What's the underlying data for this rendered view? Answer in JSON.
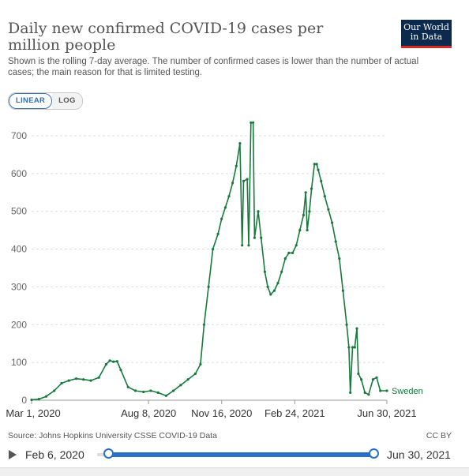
{
  "header": {
    "title": "Daily new confirmed COVID-19 cases per million people",
    "subtitle": "Shown is the rolling 7-day average. The number of confirmed cases is lower than the number of actual cases; the main reason for that is limited testing.",
    "logo_line1": "Our World",
    "logo_line2": "in Data"
  },
  "scale_toggle": {
    "linear_label": "LINEAR",
    "log_label": "LOG",
    "selected": "LINEAR"
  },
  "footer": {
    "source": "Source: Johns Hopkins University CSSE COVID-19 Data",
    "license": "CC BY"
  },
  "timeline": {
    "start_label": "Feb 6, 2020",
    "end_label": "Jun 30, 2021"
  },
  "colors": {
    "series": "#18793d",
    "grid": "#dddddd",
    "accent": "#2a70c9"
  },
  "chart_data": {
    "type": "line",
    "title": "Daily new confirmed COVID-19 cases per million people",
    "ylim": [
      0,
      700
    ],
    "yticks": [
      0,
      100,
      200,
      300,
      400,
      500,
      600,
      700
    ],
    "xlim": [
      "2020-03-01",
      "2021-06-30"
    ],
    "xticks": [
      {
        "date": "2020-03-01",
        "label": "Mar 1, 2020"
      },
      {
        "date": "2020-08-08",
        "label": "Aug 8, 2020"
      },
      {
        "date": "2020-11-16",
        "label": "Nov 16, 2020"
      },
      {
        "date": "2021-02-24",
        "label": "Feb 24, 2021"
      },
      {
        "date": "2021-06-30",
        "label": "Jun 30, 2021"
      }
    ],
    "grid": "horizontal dashed",
    "series": [
      {
        "name": "Sweden",
        "points": [
          [
            "2020-03-01",
            1
          ],
          [
            "2020-03-11",
            3
          ],
          [
            "2020-03-21",
            10
          ],
          [
            "2020-04-01",
            25
          ],
          [
            "2020-04-11",
            45
          ],
          [
            "2020-04-21",
            52
          ],
          [
            "2020-05-01",
            57
          ],
          [
            "2020-05-11",
            55
          ],
          [
            "2020-05-21",
            52
          ],
          [
            "2020-06-01",
            60
          ],
          [
            "2020-06-11",
            95
          ],
          [
            "2020-06-16",
            105
          ],
          [
            "2020-06-21",
            102
          ],
          [
            "2020-06-26",
            103
          ],
          [
            "2020-07-01",
            80
          ],
          [
            "2020-07-11",
            35
          ],
          [
            "2020-07-21",
            25
          ],
          [
            "2020-08-01",
            22
          ],
          [
            "2020-08-11",
            25
          ],
          [
            "2020-08-21",
            20
          ],
          [
            "2020-09-01",
            12
          ],
          [
            "2020-09-11",
            25
          ],
          [
            "2020-09-21",
            40
          ],
          [
            "2020-10-01",
            55
          ],
          [
            "2020-10-11",
            70
          ],
          [
            "2020-10-18",
            95
          ],
          [
            "2020-10-23",
            200
          ],
          [
            "2020-10-29",
            300
          ],
          [
            "2020-11-04",
            400
          ],
          [
            "2020-11-11",
            440
          ],
          [
            "2020-11-16",
            480
          ],
          [
            "2020-11-21",
            510
          ],
          [
            "2020-11-26",
            540
          ],
          [
            "2020-12-01",
            575
          ],
          [
            "2020-12-06",
            620
          ],
          [
            "2020-12-11",
            680
          ],
          [
            "2020-12-14",
            410
          ],
          [
            "2020-12-16",
            580
          ],
          [
            "2020-12-21",
            585
          ],
          [
            "2020-12-23",
            410
          ],
          [
            "2020-12-26",
            735
          ],
          [
            "2020-12-29",
            735
          ],
          [
            "2020-12-31",
            430
          ],
          [
            "2021-01-05",
            500
          ],
          [
            "2021-01-09",
            430
          ],
          [
            "2021-01-14",
            340
          ],
          [
            "2021-01-18",
            300
          ],
          [
            "2021-01-22",
            280
          ],
          [
            "2021-01-27",
            290
          ],
          [
            "2021-02-01",
            310
          ],
          [
            "2021-02-06",
            340
          ],
          [
            "2021-02-11",
            375
          ],
          [
            "2021-02-16",
            390
          ],
          [
            "2021-02-21",
            390
          ],
          [
            "2021-02-26",
            410
          ],
          [
            "2021-03-03",
            450
          ],
          [
            "2021-03-08",
            490
          ],
          [
            "2021-03-11",
            550
          ],
          [
            "2021-03-13",
            450
          ],
          [
            "2021-03-16",
            500
          ],
          [
            "2021-03-19",
            560
          ],
          [
            "2021-03-23",
            625
          ],
          [
            "2021-03-26",
            625
          ],
          [
            "2021-03-28",
            610
          ],
          [
            "2021-04-01",
            580
          ],
          [
            "2021-04-06",
            540
          ],
          [
            "2021-04-11",
            505
          ],
          [
            "2021-04-16",
            470
          ],
          [
            "2021-04-21",
            420
          ],
          [
            "2021-04-26",
            375
          ],
          [
            "2021-05-01",
            290
          ],
          [
            "2021-05-06",
            200
          ],
          [
            "2021-05-09",
            140
          ],
          [
            "2021-05-11",
            20
          ],
          [
            "2021-05-14",
            140
          ],
          [
            "2021-05-17",
            140
          ],
          [
            "2021-05-20",
            190
          ],
          [
            "2021-05-22",
            70
          ],
          [
            "2021-05-26",
            55
          ],
          [
            "2021-05-31",
            20
          ],
          [
            "2021-06-05",
            15
          ],
          [
            "2021-06-11",
            55
          ],
          [
            "2021-06-16",
            60
          ],
          [
            "2021-06-21",
            25
          ],
          [
            "2021-06-30",
            25
          ]
        ]
      }
    ]
  }
}
